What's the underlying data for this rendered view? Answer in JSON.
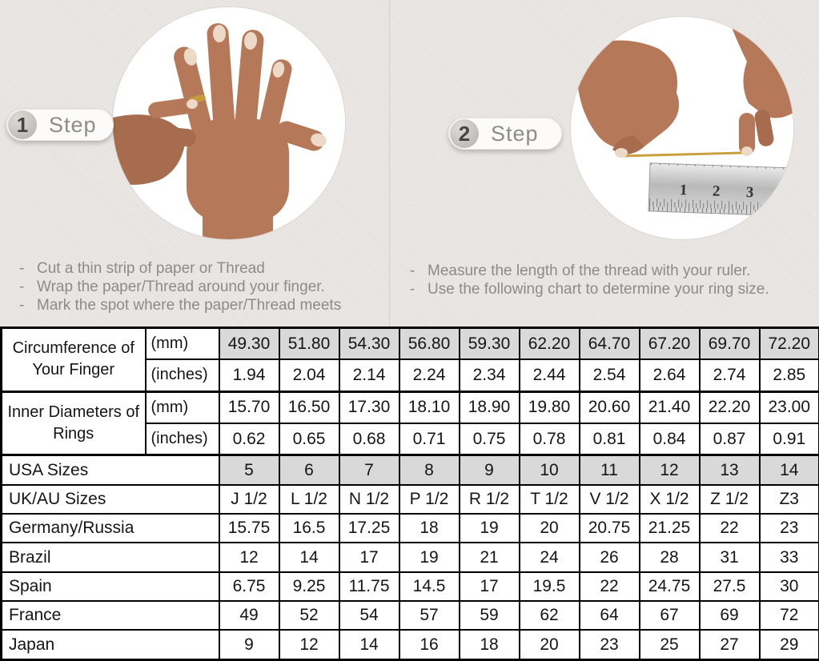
{
  "colors": {
    "background": "#eae7e3",
    "shaded_cell": "#d9d9d9",
    "table_border": "#000000",
    "muted_text": "#8e8b87",
    "gold_thread": "#c8a13e"
  },
  "steps": [
    {
      "number": "1",
      "label": "Step",
      "photo": "hand-with-thread-wrapped-around-finger",
      "instructions": [
        "Cut a thin strip of paper or Thread",
        "Wrap the paper/Thread around your finger.",
        "Mark the spot where the paper/Thread meets"
      ]
    },
    {
      "number": "2",
      "label": "Step",
      "photo": "hands-measuring-thread-with-ruler",
      "instructions": [
        "Measure the length of the thread with your ruler.",
        "Use the following chart to determine your ring size."
      ]
    }
  ],
  "ruler_numbers": [
    "1",
    "2",
    "3"
  ],
  "table": {
    "rows": [
      {
        "label": "Circumference of Your Finger",
        "unit": "(mm)",
        "shaded": true,
        "values": [
          "49.30",
          "51.80",
          "54.30",
          "56.80",
          "59.30",
          "62.20",
          "64.70",
          "67.20",
          "69.70",
          "72.20"
        ]
      },
      {
        "unit": "(inches)",
        "values": [
          "1.94",
          "2.04",
          "2.14",
          "2.24",
          "2.34",
          "2.44",
          "2.54",
          "2.64",
          "2.74",
          "2.85"
        ]
      },
      {
        "label": "Inner Diameters of Rings",
        "unit": "(mm)",
        "values": [
          "15.70",
          "16.50",
          "17.30",
          "18.10",
          "18.90",
          "19.80",
          "20.60",
          "21.40",
          "22.20",
          "23.00"
        ]
      },
      {
        "unit": "(inches)",
        "values": [
          "0.62",
          "0.65",
          "0.68",
          "0.71",
          "0.75",
          "0.78",
          "0.81",
          "0.84",
          "0.87",
          "0.91"
        ]
      },
      {
        "label": "USA Sizes",
        "shaded": true,
        "values": [
          "5",
          "6",
          "7",
          "8",
          "9",
          "10",
          "11",
          "12",
          "13",
          "14"
        ]
      },
      {
        "label": "UK/AU Sizes",
        "values": [
          "J 1/2",
          "L 1/2",
          "N 1/2",
          "P 1/2",
          "R 1/2",
          "T 1/2",
          "V 1/2",
          "X 1/2",
          "Z 1/2",
          "Z3"
        ]
      },
      {
        "label": "Germany/Russia",
        "values": [
          "15.75",
          "16.5",
          "17.25",
          "18",
          "19",
          "20",
          "20.75",
          "21.25",
          "22",
          "23"
        ]
      },
      {
        "label": "Brazil",
        "values": [
          "12",
          "14",
          "17",
          "19",
          "21",
          "24",
          "26",
          "28",
          "31",
          "33"
        ]
      },
      {
        "label": "Spain",
        "values": [
          "6.75",
          "9.25",
          "11.75",
          "14.5",
          "17",
          "19.5",
          "22",
          "24.75",
          "27.5",
          "30"
        ]
      },
      {
        "label": "France",
        "values": [
          "49",
          "52",
          "54",
          "57",
          "59",
          "62",
          "64",
          "67",
          "69",
          "72"
        ]
      },
      {
        "label": "Japan",
        "values": [
          "9",
          "12",
          "14",
          "16",
          "18",
          "20",
          "23",
          "25",
          "27",
          "29"
        ]
      }
    ]
  }
}
